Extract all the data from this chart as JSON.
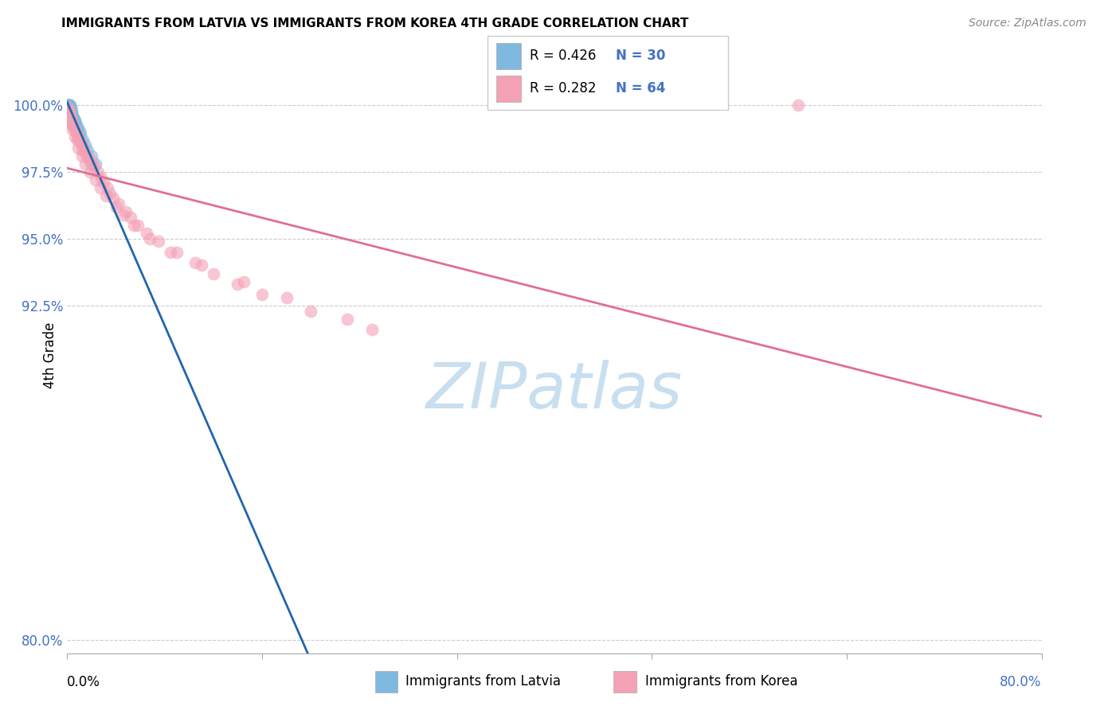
{
  "title": "IMMIGRANTS FROM LATVIA VS IMMIGRANTS FROM KOREA 4TH GRADE CORRELATION CHART",
  "source": "Source: ZipAtlas.com",
  "ylabel": "4th Grade",
  "yticks": [
    80.0,
    92.5,
    95.0,
    97.5,
    100.0
  ],
  "ytick_labels": [
    "80.0%",
    "92.5%",
    "95.0%",
    "97.5%",
    "100.0%"
  ],
  "xlim": [
    0.0,
    80.0
  ],
  "ylim": [
    79.5,
    101.8
  ],
  "legend1_r": "R = 0.426",
  "legend1_n": "N = 30",
  "legend2_r": "R = 0.282",
  "legend2_n": "N = 64",
  "legend_bottom1": "Immigrants from Latvia",
  "legend_bottom2": "Immigrants from Korea",
  "latvia_color": "#7fb9e0",
  "korea_color": "#f4a0b5",
  "latvia_line_color": "#2166ac",
  "korea_line_color": "#e07090",
  "latvia_x": [
    0.05,
    0.07,
    0.1,
    0.12,
    0.15,
    0.18,
    0.2,
    0.22,
    0.25,
    0.28,
    0.3,
    0.35,
    0.4,
    0.45,
    0.5,
    0.55,
    0.6,
    0.65,
    0.7,
    0.8,
    0.9,
    1.0,
    1.1,
    1.3,
    1.5,
    1.7,
    2.0,
    2.3,
    0.15,
    0.08
  ],
  "latvia_y": [
    100.0,
    100.0,
    100.0,
    100.0,
    100.0,
    100.0,
    100.0,
    99.9,
    100.0,
    99.9,
    99.8,
    99.8,
    99.7,
    99.6,
    99.5,
    99.5,
    99.4,
    99.4,
    99.3,
    99.2,
    99.1,
    99.0,
    98.9,
    98.7,
    98.5,
    98.3,
    98.1,
    97.8,
    99.8,
    100.0
  ],
  "korea_x": [
    0.05,
    0.1,
    0.15,
    0.2,
    0.25,
    0.3,
    0.35,
    0.4,
    0.5,
    0.6,
    0.7,
    0.8,
    0.9,
    1.0,
    1.1,
    1.2,
    1.4,
    1.5,
    1.6,
    1.8,
    2.0,
    2.2,
    2.5,
    2.8,
    3.0,
    3.3,
    3.5,
    3.8,
    4.2,
    4.8,
    5.2,
    5.8,
    6.5,
    7.5,
    9.0,
    10.5,
    12.0,
    14.0,
    16.0,
    20.0,
    25.0,
    0.3,
    0.6,
    0.9,
    1.2,
    1.5,
    1.9,
    2.3,
    2.7,
    3.2,
    4.0,
    4.6,
    5.5,
    6.8,
    8.5,
    11.0,
    14.5,
    18.0,
    23.0,
    60.0,
    0.4,
    0.8,
    1.3,
    2.0
  ],
  "korea_y": [
    99.9,
    99.8,
    99.7,
    99.8,
    99.6,
    99.5,
    99.4,
    99.3,
    99.2,
    99.1,
    99.0,
    98.9,
    98.8,
    98.7,
    98.6,
    98.5,
    98.3,
    98.2,
    98.1,
    97.9,
    97.8,
    97.7,
    97.5,
    97.3,
    97.1,
    96.9,
    96.7,
    96.5,
    96.3,
    96.0,
    95.8,
    95.5,
    95.2,
    94.9,
    94.5,
    94.1,
    93.7,
    93.3,
    92.9,
    92.3,
    91.6,
    99.3,
    98.8,
    98.4,
    98.1,
    97.8,
    97.5,
    97.2,
    96.9,
    96.6,
    96.2,
    95.9,
    95.5,
    95.0,
    94.5,
    94.0,
    93.4,
    92.8,
    92.0,
    100.0,
    99.1,
    98.7,
    98.3,
    97.9
  ],
  "watermark_text": "ZIPatlas",
  "watermark_color": "#c8dff0",
  "bg_color": "#ffffff"
}
